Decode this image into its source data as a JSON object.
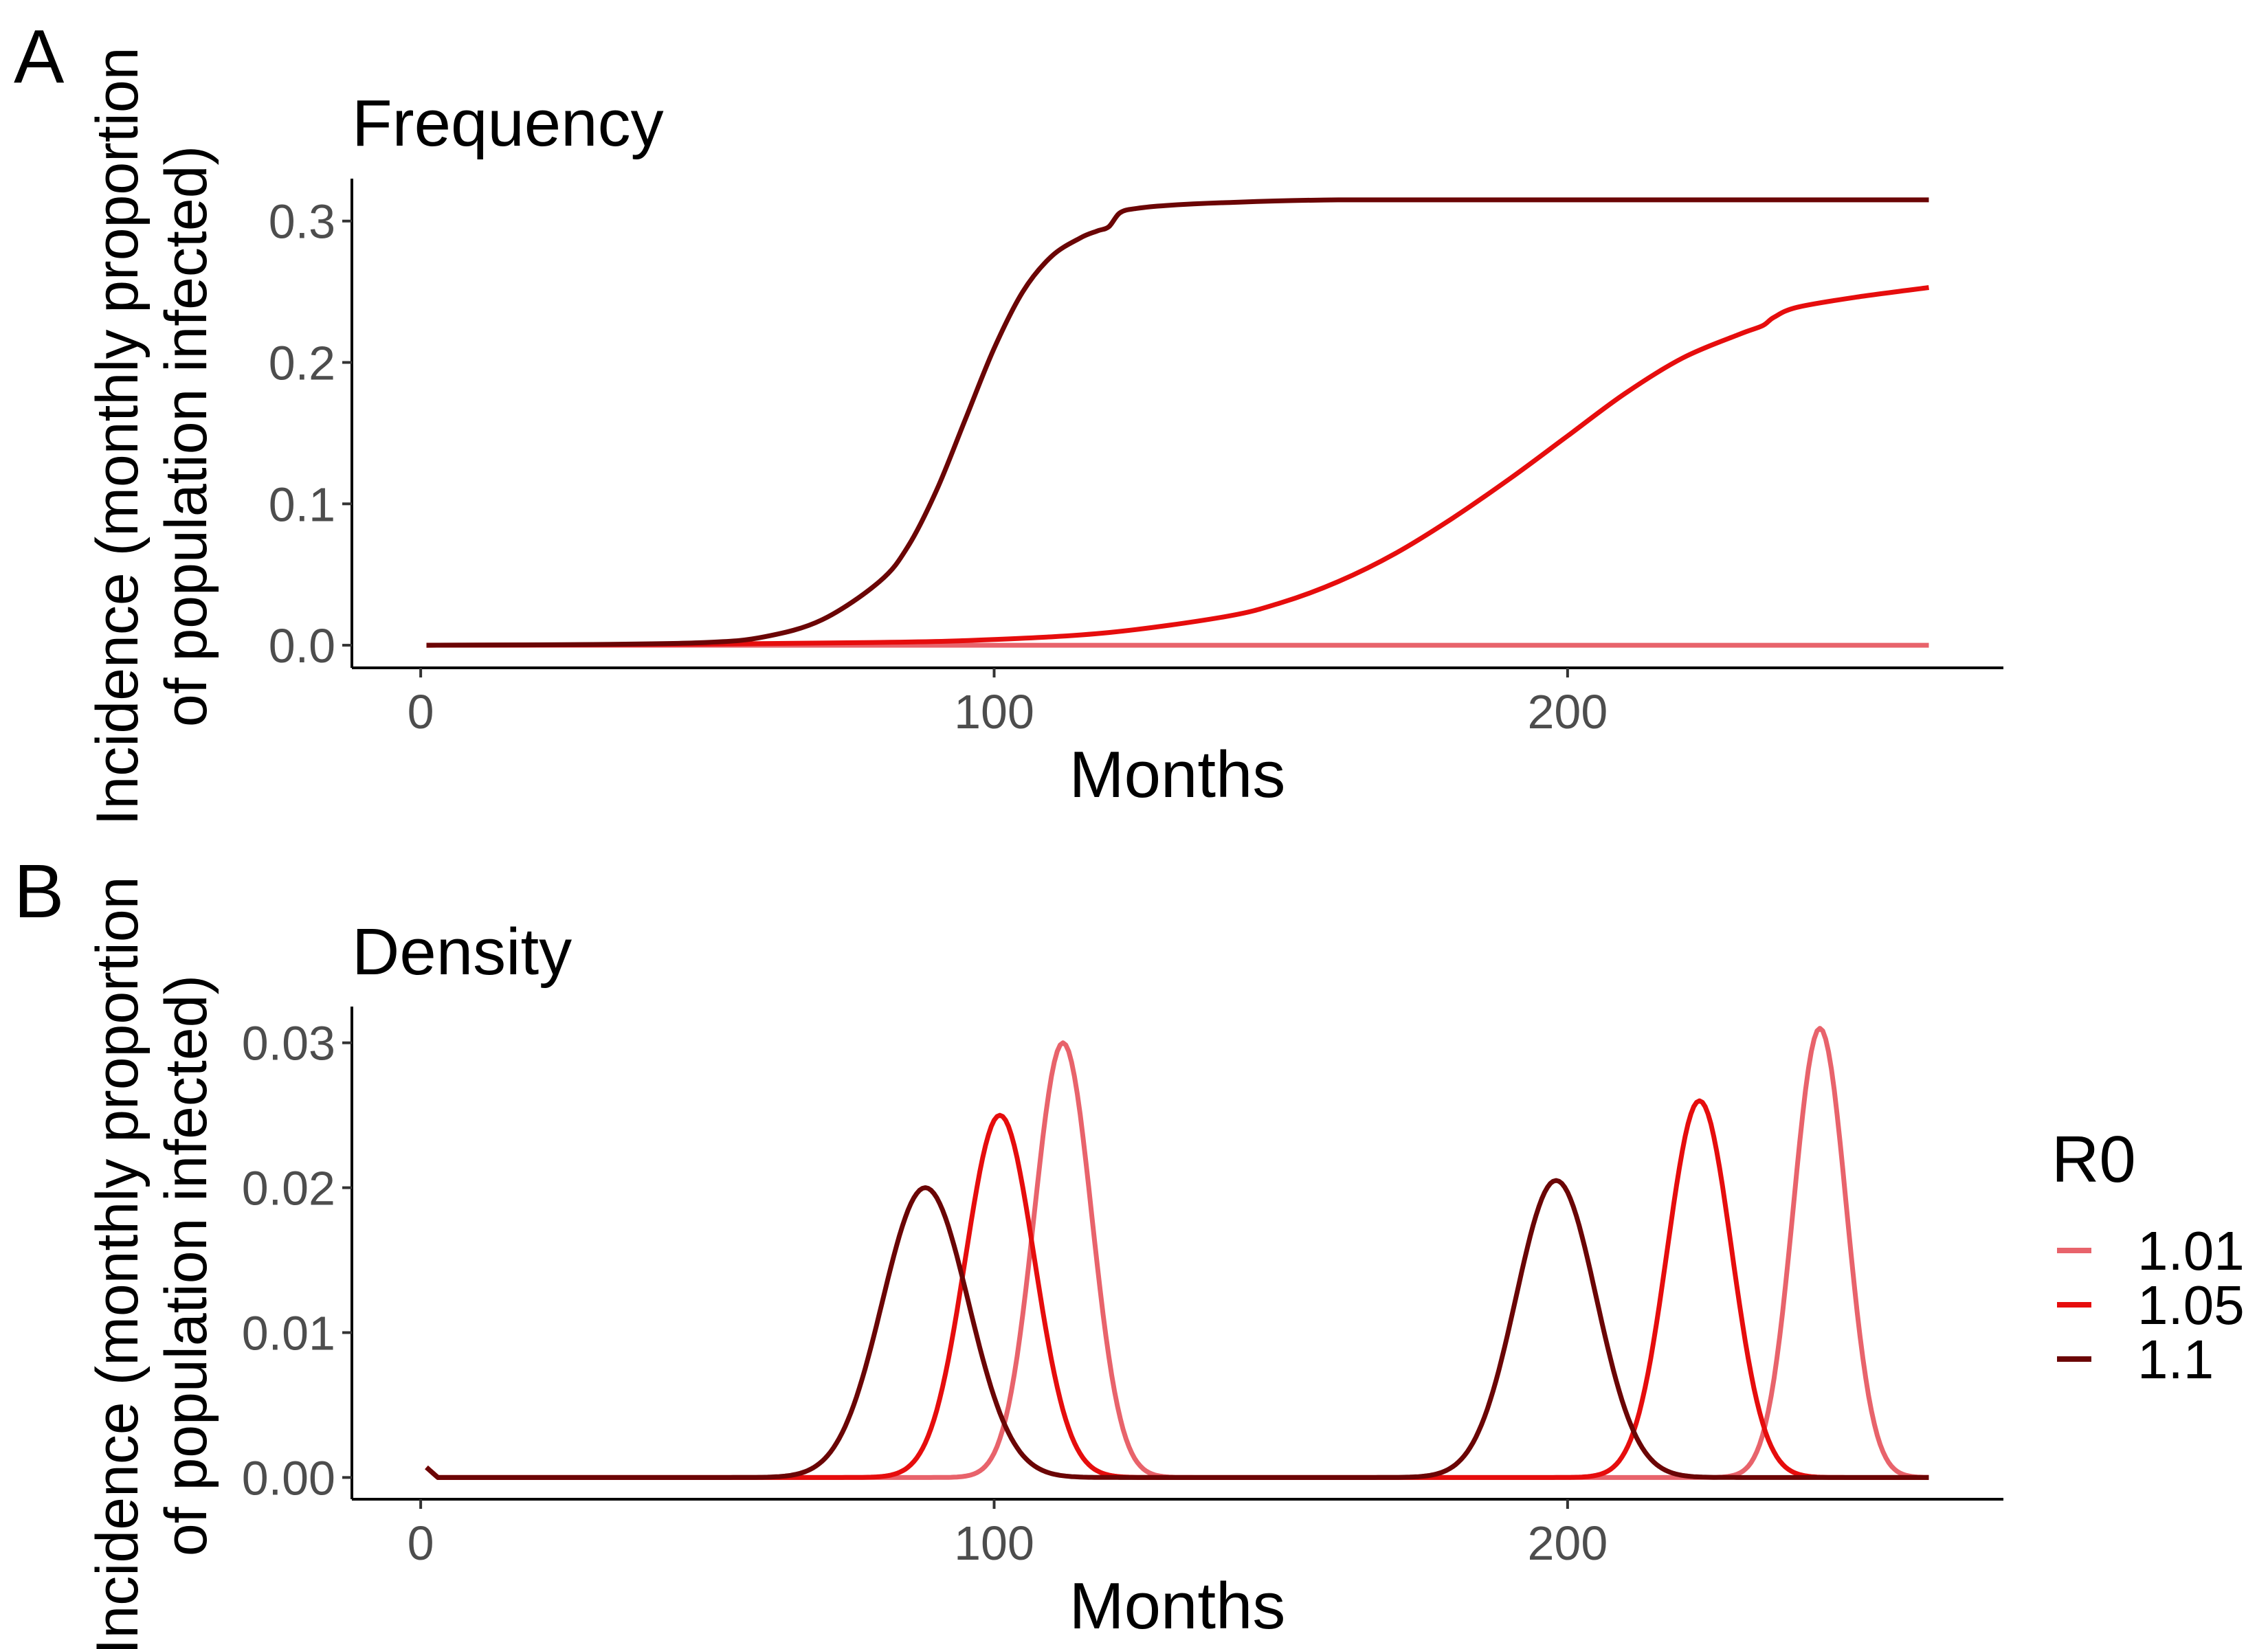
{
  "legend": {
    "title": "R0",
    "items": [
      {
        "label": "1.01",
        "color": "#e8636b"
      },
      {
        "label": "1.05",
        "color": "#e60d0d"
      },
      {
        "label": "1.1",
        "color": "#6b0505"
      }
    ]
  },
  "chart_data": [
    {
      "panel_label": "A",
      "type": "line",
      "title": "Frequency",
      "xlabel": "Months",
      "ylabel_line1": "Incidence (monthly proportion",
      "ylabel_line2": "of population infected)",
      "xlim": [
        -12,
        276
      ],
      "ylim": [
        -0.016,
        0.33
      ],
      "xticks": [
        0,
        100,
        200
      ],
      "xtick_labels": [
        "0",
        "100",
        "200"
      ],
      "yticks": [
        0,
        0.1,
        0.2,
        0.3
      ],
      "ytick_labels": [
        "0.0",
        "0.1",
        "0.2",
        "0.3"
      ],
      "grid": false,
      "series": [
        {
          "name": "1.01",
          "color": "#e8636b",
          "x": [
            1,
            50,
            100,
            150,
            200,
            263
          ],
          "y": [
            0.0,
            0.0,
            0.0,
            0.0,
            0.0,
            0.0
          ]
        },
        {
          "name": "1.05",
          "color": "#e60d0d",
          "x": [
            1,
            40,
            80,
            100,
            120,
            140,
            150,
            160,
            170,
            180,
            190,
            200,
            210,
            220,
            230,
            234,
            236,
            240,
            250,
            263
          ],
          "y": [
            0.0,
            0.0005,
            0.002,
            0.004,
            0.009,
            0.02,
            0.03,
            0.045,
            0.065,
            0.09,
            0.118,
            0.148,
            0.178,
            0.203,
            0.22,
            0.226,
            0.232,
            0.239,
            0.246,
            0.253
          ]
        },
        {
          "name": "1.1",
          "color": "#6b0505",
          "x": [
            1,
            30,
            50,
            60,
            70,
            80,
            85,
            90,
            95,
            100,
            105,
            110,
            115,
            118,
            120,
            122,
            125,
            130,
            140,
            160,
            200,
            263
          ],
          "y": [
            0.0,
            0.0005,
            0.002,
            0.006,
            0.018,
            0.045,
            0.07,
            0.11,
            0.16,
            0.21,
            0.25,
            0.275,
            0.288,
            0.293,
            0.296,
            0.306,
            0.309,
            0.311,
            0.313,
            0.315,
            0.315,
            0.315
          ]
        }
      ]
    },
    {
      "panel_label": "B",
      "type": "line",
      "title": "Density",
      "xlabel": "Months",
      "ylabel_line1": "Incidence (monthly proportion",
      "ylabel_line2": "of population infected)",
      "xlim": [
        -12,
        276
      ],
      "ylim": [
        -0.0015,
        0.0325
      ],
      "xticks": [
        0,
        100,
        200
      ],
      "xtick_labels": [
        "0",
        "100",
        "200"
      ],
      "yticks": [
        0,
        0.01,
        0.02,
        0.03
      ],
      "ytick_labels": [
        "0.00",
        "0.01",
        "0.02",
        "0.03"
      ],
      "grid": false,
      "series": [
        {
          "name": "1.01",
          "color": "#e8636b",
          "peaks": [
            {
              "center": 112,
              "height": 0.03,
              "width": 5.0
            },
            {
              "center": 244,
              "height": 0.031,
              "width": 4.6
            }
          ]
        },
        {
          "name": "1.05",
          "color": "#e60d0d",
          "peaks": [
            {
              "center": 101,
              "height": 0.025,
              "width": 6.0
            },
            {
              "center": 223,
              "height": 0.026,
              "width": 5.6
            }
          ]
        },
        {
          "name": "1.1",
          "color": "#6b0505",
          "peaks": [
            {
              "center": 88,
              "height": 0.02,
              "width": 7.5
            },
            {
              "center": 198,
              "height": 0.0205,
              "width": 7.0
            }
          ]
        }
      ]
    }
  ]
}
